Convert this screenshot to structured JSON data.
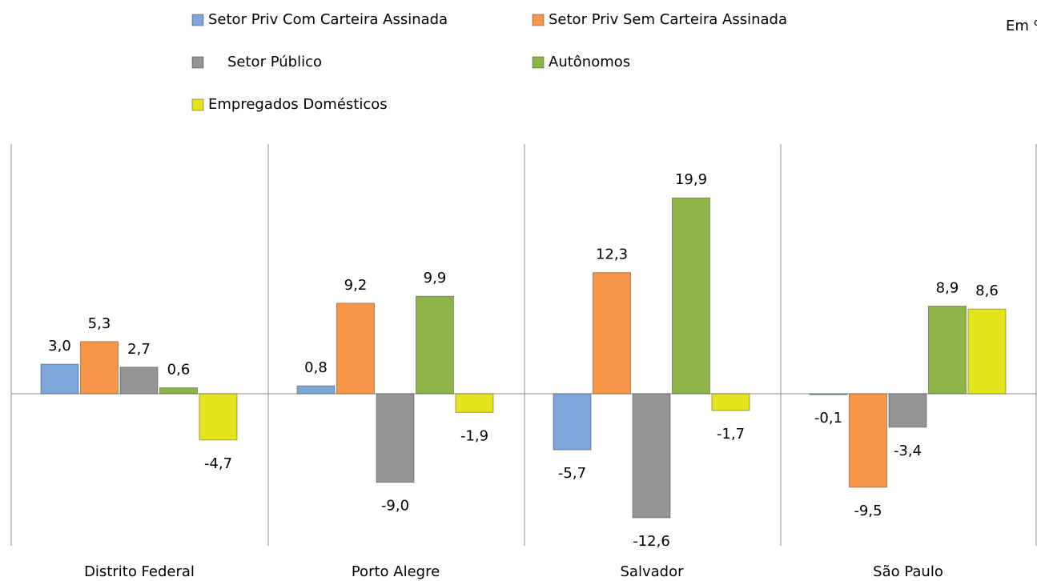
{
  "chart_data": {
    "type": "bar",
    "annotation": "Em %",
    "categories": [
      "Distrito Federal",
      "Porto Alegre",
      "Salvador",
      "São Paulo"
    ],
    "series": [
      {
        "name": "Setor Priv Com Carteira Assinada",
        "color": "#7ea6d8",
        "values": [
          3.0,
          0.8,
          -5.7,
          -0.1
        ],
        "value_labels": [
          "3,0",
          "0,8",
          "-5,7",
          "-0,1"
        ]
      },
      {
        "name": "Setor Priv Sem Carteira Assinada",
        "color": "#f79646",
        "values": [
          5.3,
          9.2,
          12.3,
          -9.5
        ],
        "value_labels": [
          "5,3",
          "9,2",
          "12,3",
          "-9,5"
        ]
      },
      {
        "name": "Setor Público",
        "color": "#959595",
        "values": [
          2.7,
          -9.0,
          -12.6,
          -3.4
        ],
        "value_labels": [
          "2,7",
          "-9,0",
          "-12,6",
          "-3,4"
        ]
      },
      {
        "name": "Autônomos",
        "color": "#8cb449",
        "values": [
          0.6,
          9.9,
          19.9,
          8.9
        ],
        "value_labels": [
          "0,6",
          "9,9",
          "19,9",
          "8,9"
        ]
      },
      {
        "name": "Empregados Domésticos",
        "color": "#e3e31c",
        "values": [
          -4.7,
          -1.9,
          -1.7,
          8.6
        ],
        "value_labels": [
          "-4,7",
          "-1,9",
          "-1,7",
          "8,6"
        ]
      }
    ]
  }
}
